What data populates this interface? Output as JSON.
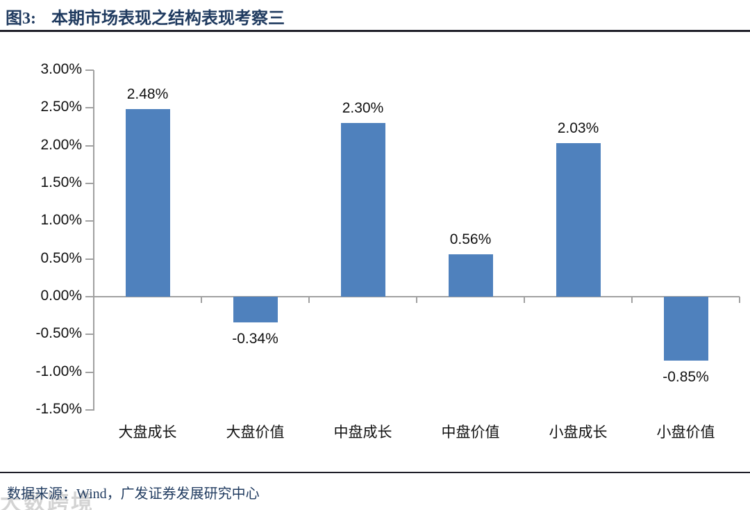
{
  "header": {
    "figure_label": "图3:",
    "title": "本期市场表现之结构表现考察三"
  },
  "footer": {
    "source": "数据来源：Wind，广发证券发展研究中心",
    "watermark": "大数跨境"
  },
  "chart_data": {
    "type": "bar",
    "title": "图3: 本期市场表现之结构表现考察三",
    "categories": [
      "大盘成长",
      "大盘价值",
      "中盘成长",
      "中盘价值",
      "小盘成长",
      "小盘价值"
    ],
    "values": [
      2.48,
      -0.34,
      2.3,
      0.56,
      2.03,
      -0.85
    ],
    "value_labels": [
      "2.48%",
      "-0.34%",
      "2.30%",
      "0.56%",
      "2.03%",
      "-0.85%"
    ],
    "y_ticks": [
      "3.00%",
      "2.50%",
      "2.00%",
      "1.50%",
      "1.00%",
      "0.50%",
      "0.00%",
      "-0.50%",
      "-1.00%",
      "-1.50%"
    ],
    "ylim": [
      -1.5,
      3.0
    ],
    "xlabel": "",
    "ylabel": "",
    "grid": false,
    "legend": false,
    "bar_color": "#4F81BD",
    "axis_color": "#A0A0A0"
  }
}
